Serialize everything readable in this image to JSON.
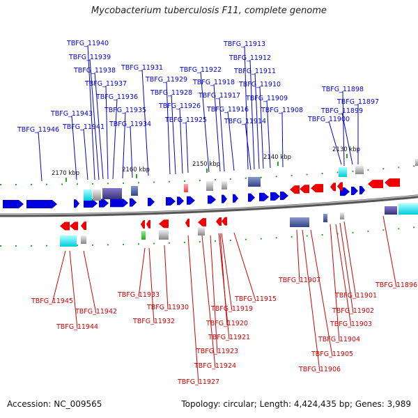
{
  "title": "Mycobacterium tuberculosis F11, complete genome",
  "footer": {
    "accession": "Accession: NC_009565",
    "summary": "Topology: circular; Length: 4,424,435 bp; Genes: 3,989"
  },
  "colors": {
    "forward": "#0000dd",
    "reverse": "#ee0000",
    "backbone": "#777777",
    "tick": "#22aa22"
  },
  "scale_labels": [
    "2170 kbp",
    "2160 kbp",
    "2150 kbp",
    "2140 kbp",
    "2130 kbp"
  ],
  "forward_genes": [
    "TBFG_11940",
    "TBFG_11939",
    "TBFG_11938",
    "TBFG_11937",
    "TBFG_11936",
    "TBFG_11935",
    "TBFG_11934",
    "TBFG_11943",
    "TBFG_11941",
    "TBFG_11946",
    "TBFG_11931",
    "TBFG_11929",
    "TBFG_11928",
    "TBFG_11926",
    "TBFG_11925",
    "TBFG_11922",
    "TBFG_11918",
    "TBFG_11917",
    "TBFG_11916",
    "TBFG_11914",
    "TBFG_11913",
    "TBFG_11912",
    "TBFG_11911",
    "TBFG_11910",
    "TBFG_11909",
    "TBFG_11908",
    "TBFG_11898",
    "TBFG_11897",
    "TBFG_11899",
    "TBFG_11900"
  ],
  "reverse_genes": [
    "TBFG_11945",
    "TBFG_11942",
    "TBFG_11944",
    "TBFG_11933",
    "TBFG_11932",
    "TBFG_11930",
    "TBFG_11919",
    "TBFG_11920",
    "TBFG_11921",
    "TBFG_11923",
    "TBFG_11924",
    "TBFG_11927",
    "TBFG_11915",
    "TBFG_11907",
    "TBFG_11905",
    "TBFG_11906",
    "TBFG_11904",
    "TBFG_11903",
    "TBFG_11902",
    "TBFG_11901",
    "TBFG_11896"
  ]
}
